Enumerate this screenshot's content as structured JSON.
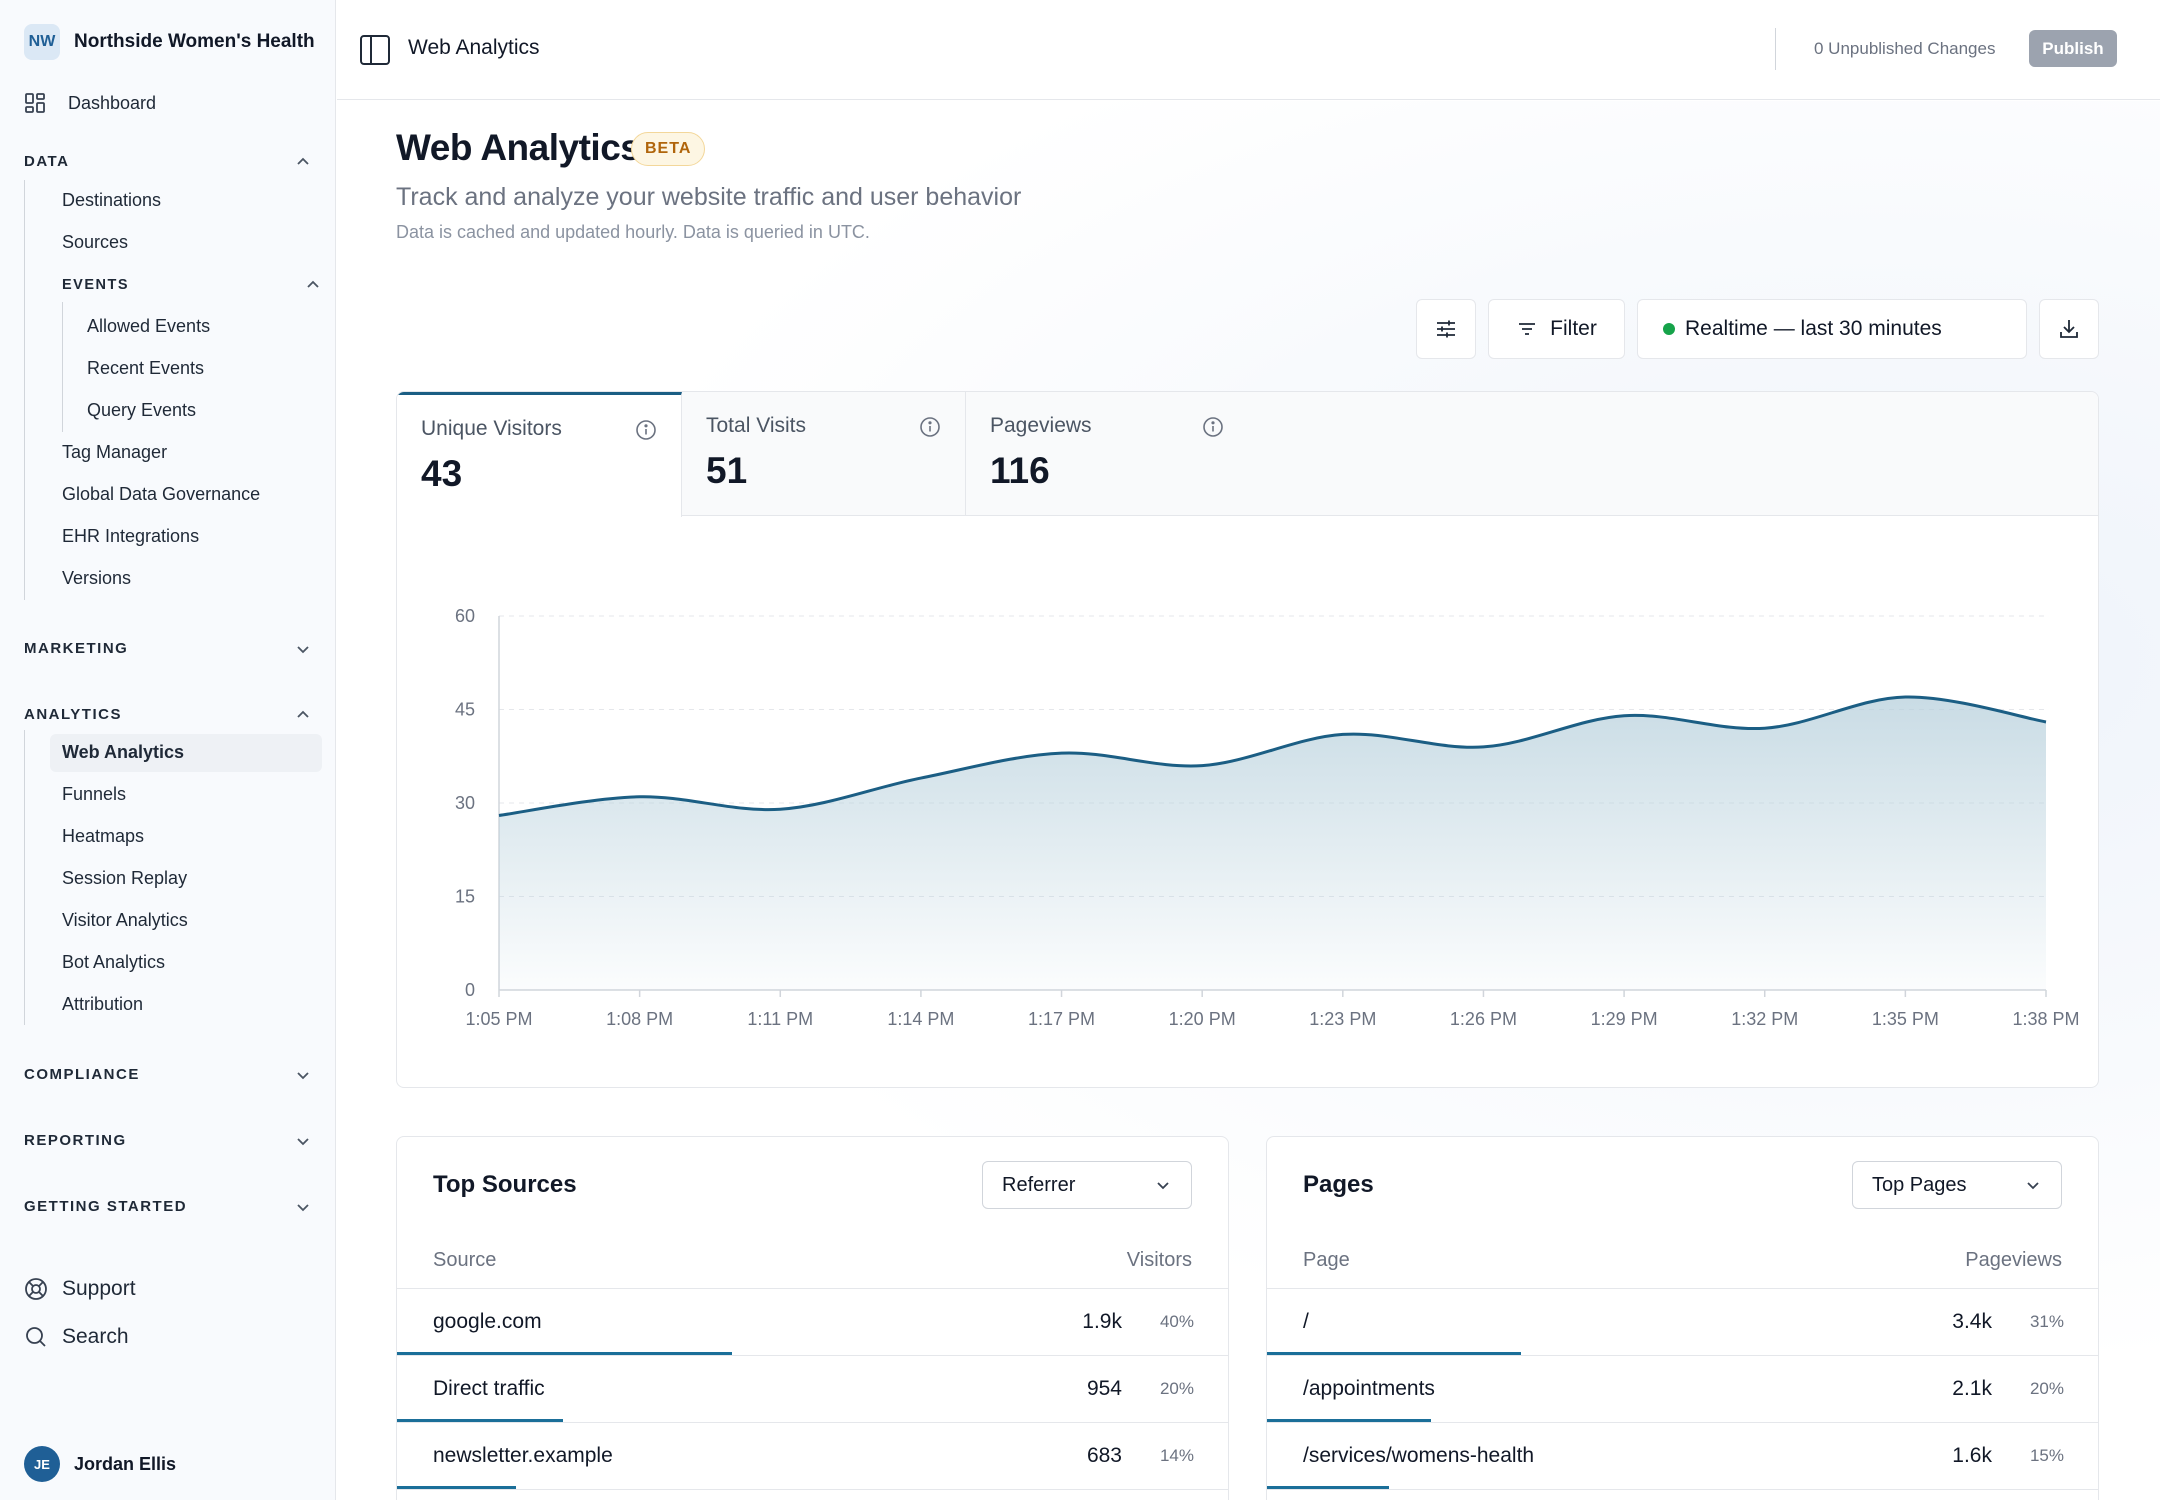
{
  "sidebar": {
    "org_initials": "NW",
    "org_name": "Northside Women's Health",
    "dashboard": "Dashboard",
    "data_section": "DATA",
    "data_items": [
      "Destinations",
      "Sources"
    ],
    "events_section": "EVENTS",
    "events_items": [
      "Allowed Events",
      "Recent Events",
      "Query Events"
    ],
    "data_items_2": [
      "Tag Manager",
      "Global Data Governance",
      "EHR Integrations",
      "Versions"
    ],
    "marketing_section": "MARKETING",
    "analytics_section": "ANALYTICS",
    "analytics_items": [
      "Web Analytics",
      "Funnels",
      "Heatmaps",
      "Session Replay",
      "Visitor Analytics",
      "Bot Analytics",
      "Attribution"
    ],
    "compliance_section": "COMPLIANCE",
    "reporting_section": "REPORTING",
    "getting_started_section": "GETTING STARTED",
    "support": "Support",
    "search": "Search",
    "user_initials": "JE",
    "user_name": "Jordan Ellis"
  },
  "topbar": {
    "title": "Web Analytics",
    "unpublished": "0 Unpublished Changes",
    "publish": "Publish"
  },
  "page": {
    "title": "Web Analytics",
    "badge": "BETA",
    "subtitle": "Track and analyze your website traffic and user behavior",
    "note": "Data is cached and updated hourly. Data is queried in UTC."
  },
  "toolbar": {
    "filter": "Filter",
    "range": "Realtime — last 30 minutes"
  },
  "metrics": [
    {
      "label": "Unique Visitors",
      "value": "43"
    },
    {
      "label": "Total Visits",
      "value": "51"
    },
    {
      "label": "Pageviews",
      "value": "116"
    }
  ],
  "chart_data": {
    "type": "area",
    "x": [
      "1:05 PM",
      "1:08 PM",
      "1:11 PM",
      "1:14 PM",
      "1:17 PM",
      "1:20 PM",
      "1:23 PM",
      "1:26 PM",
      "1:29 PM",
      "1:32 PM",
      "1:35 PM",
      "1:38 PM"
    ],
    "values": [
      28,
      31,
      29,
      34,
      38,
      36,
      41,
      39,
      44,
      42,
      47,
      43
    ],
    "yticks": [
      0,
      15,
      30,
      45,
      60
    ],
    "ylim": [
      0,
      60
    ],
    "grid": true,
    "colors": {
      "line": "#1b5e84",
      "fill": "#b7d0dc"
    }
  },
  "sources": {
    "title": "Top Sources",
    "dropdown": "Referrer",
    "col_left": "Source",
    "col_right": "Visitors",
    "rows": [
      {
        "name": "google.com",
        "value": "1.9k",
        "pct": "40%"
      },
      {
        "name": "Direct traffic",
        "value": "954",
        "pct": "20%"
      },
      {
        "name": "newsletter.example",
        "value": "683",
        "pct": "14%"
      }
    ]
  },
  "pages": {
    "title": "Pages",
    "dropdown": "Top Pages",
    "col_left": "Page",
    "col_right": "Pageviews",
    "rows": [
      {
        "name": "/",
        "value": "3.4k",
        "pct": "31%"
      },
      {
        "name": "/appointments",
        "value": "2.1k",
        "pct": "20%"
      },
      {
        "name": "/services/womens-health",
        "value": "1.6k",
        "pct": "15%"
      }
    ]
  }
}
